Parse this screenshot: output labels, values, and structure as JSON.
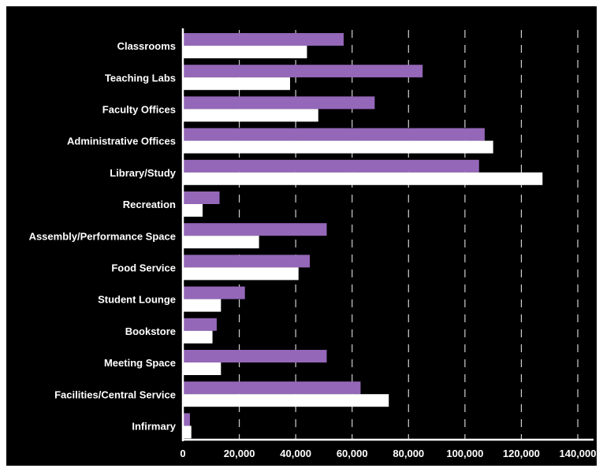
{
  "chart_data": {
    "type": "bar",
    "orientation": "horizontal",
    "categories": [
      "Classrooms",
      "Teaching Labs",
      "Faculty Offices",
      "Administrative Offices",
      "Library/Study",
      "Recreation",
      "Assembly/Performance Space",
      "Food Service",
      "Student Lounge",
      "Bookstore",
      "Meeting Space",
      "Facilities/Central Service",
      "Infirmary"
    ],
    "series": [
      {
        "color": "#9467b8",
        "values": [
          57000,
          85000,
          68000,
          107000,
          105000,
          13000,
          51000,
          45000,
          22000,
          12000,
          51000,
          63000,
          2500
        ]
      },
      {
        "color": "#ffffff",
        "values": [
          44000,
          38000,
          48000,
          110000,
          127500,
          7000,
          27000,
          41000,
          13500,
          10500,
          13500,
          73000,
          3000
        ]
      }
    ],
    "xlim": [
      0,
      140000
    ],
    "xticks": [
      0,
      20000,
      40000,
      60000,
      80000,
      100000,
      120000,
      140000
    ],
    "xtick_labels": [
      "0",
      "20,000",
      "40,000",
      "60,000",
      "80,000",
      "100,000",
      "120,000",
      "140,000"
    ],
    "grid": "vertical dashed",
    "background": "#000000",
    "legend": "none",
    "title": "",
    "xlabel": "",
    "ylabel": ""
  }
}
